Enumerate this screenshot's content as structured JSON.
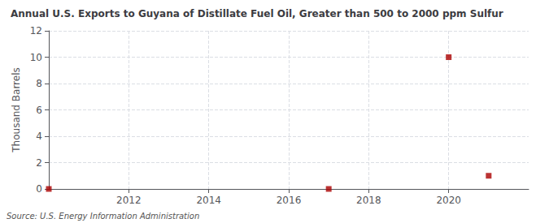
{
  "chart_data": {
    "type": "scatter",
    "title": "Annual U.S. Exports to Guyana of Distillate Fuel Oil, Greater than 500 to 2000 ppm Sulfur",
    "ylabel": "Thousand Barrels",
    "annotations": [
      "Source: U.S. Energy Information Administration"
    ],
    "x": [
      2010,
      2017,
      2020,
      2021
    ],
    "values": [
      0,
      0,
      10,
      1
    ],
    "color": "#aa0000",
    "marker": "square",
    "xlim": [
      2010.0,
      2022.0
    ],
    "ylim": [
      0,
      12
    ],
    "xticks": [
      2012,
      2014,
      2016,
      2018,
      2020
    ],
    "yticks": [
      0,
      2,
      4,
      6,
      8,
      10,
      12
    ],
    "grid": true
  }
}
